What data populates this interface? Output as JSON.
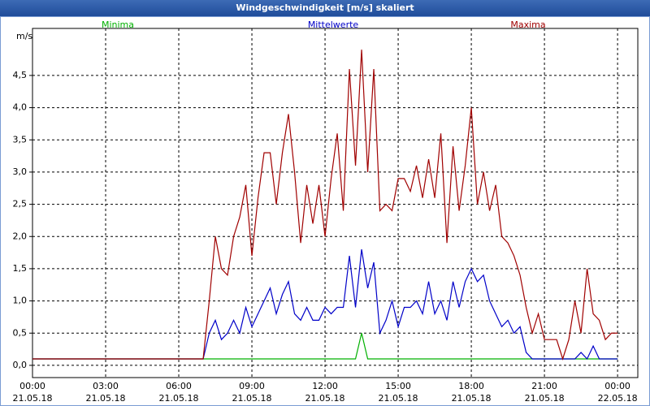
{
  "chart_data": {
    "type": "line",
    "title": "Windgeschwindigkeit [m/s] skaliert",
    "y_label": "m/s",
    "x": [
      0,
      7,
      7.25,
      7.5,
      7.75,
      8,
      8.25,
      8.5,
      8.75,
      9,
      9.25,
      9.5,
      9.75,
      10,
      10.25,
      10.5,
      10.75,
      11,
      11.25,
      11.5,
      11.75,
      12,
      12.25,
      12.5,
      12.75,
      13,
      13.25,
      13.5,
      13.75,
      14,
      14.25,
      14.5,
      14.75,
      15,
      15.25,
      15.5,
      15.75,
      16,
      16.25,
      16.5,
      16.75,
      17,
      17.25,
      17.5,
      17.75,
      18,
      18.25,
      18.5,
      18.75,
      19,
      19.25,
      19.5,
      19.75,
      20,
      20.25,
      20.5,
      20.75,
      21,
      21.25,
      21.5,
      21.75,
      22,
      22.25,
      22.5,
      22.75,
      23,
      23.25,
      23.5,
      23.75,
      24
    ],
    "series": [
      {
        "name": "Minima",
        "color": "#00b000",
        "legend_pos": "left",
        "values": [
          0.1,
          0.1,
          0.1,
          0.1,
          0.1,
          0.1,
          0.1,
          0.1,
          0.1,
          0.1,
          0.1,
          0.1,
          0.1,
          0.1,
          0.1,
          0.1,
          0.1,
          0.1,
          0.1,
          0.1,
          0.1,
          0.1,
          0.1,
          0.1,
          0.1,
          0.1,
          0.1,
          0.5,
          0.1,
          0.1,
          0.1,
          0.1,
          0.1,
          0.1,
          0.1,
          0.1,
          0.1,
          0.1,
          0.1,
          0.1,
          0.1,
          0.1,
          0.1,
          0.1,
          0.1,
          0.1,
          0.1,
          0.1,
          0.1,
          0.1,
          0.1,
          0.1,
          0.1,
          0.1,
          0.1,
          0.1,
          0.1,
          0.1,
          0.1,
          0.1,
          0.1,
          0.1,
          0.1,
          0.1,
          0.1,
          0.1,
          0.1,
          0.1,
          0.1,
          0.1
        ]
      },
      {
        "name": "Mittelwerte",
        "color": "#0000c8",
        "legend_pos": "center",
        "values": [
          0.1,
          0.1,
          0.5,
          0.7,
          0.4,
          0.5,
          0.7,
          0.5,
          0.9,
          0.6,
          0.8,
          1.0,
          1.2,
          0.8,
          1.1,
          1.3,
          0.8,
          0.7,
          0.9,
          0.7,
          0.7,
          0.9,
          0.8,
          0.9,
          0.9,
          1.7,
          0.9,
          1.8,
          1.2,
          1.6,
          0.5,
          0.7,
          1.0,
          0.6,
          0.9,
          0.9,
          1.0,
          0.8,
          1.3,
          0.8,
          1.0,
          0.7,
          1.3,
          0.9,
          1.3,
          1.5,
          1.3,
          1.4,
          1.0,
          0.8,
          0.6,
          0.7,
          0.5,
          0.6,
          0.2,
          0.1,
          0.1,
          0.1,
          0.1,
          0.1,
          0.1,
          0.1,
          0.1,
          0.2,
          0.1,
          0.3,
          0.1,
          0.1,
          0.1,
          0.1
        ]
      },
      {
        "name": "Maxima",
        "color": "#a00000",
        "legend_pos": "right",
        "values": [
          0.1,
          0.1,
          1.0,
          2.0,
          1.5,
          1.4,
          2.0,
          2.3,
          2.8,
          1.7,
          2.6,
          3.3,
          3.3,
          2.5,
          3.3,
          3.9,
          3.0,
          1.9,
          2.8,
          2.2,
          2.8,
          2.0,
          2.9,
          3.6,
          2.4,
          4.6,
          3.1,
          4.9,
          3.0,
          4.6,
          2.4,
          2.5,
          2.4,
          2.9,
          2.9,
          2.7,
          3.1,
          2.6,
          3.2,
          2.6,
          3.6,
          1.9,
          3.4,
          2.4,
          3.1,
          4.0,
          2.5,
          3.0,
          2.4,
          2.8,
          2.0,
          1.9,
          1.7,
          1.4,
          0.9,
          0.5,
          0.8,
          0.4,
          0.4,
          0.4,
          0.1,
          0.4,
          1.0,
          0.5,
          1.5,
          0.8,
          0.7,
          0.4,
          0.5,
          0.5
        ]
      }
    ],
    "xlim": [
      0,
      24.83
    ],
    "ylim": [
      -0.19,
      5.23
    ],
    "xticks": [
      {
        "value": 0,
        "label": "00:00\n21.05.18"
      },
      {
        "value": 3,
        "label": "03:00\n21.05.18"
      },
      {
        "value": 6,
        "label": "06:00\n21.05.18"
      },
      {
        "value": 9,
        "label": "09:00\n21.05.18"
      },
      {
        "value": 12,
        "label": "12:00\n21.05.18"
      },
      {
        "value": 15,
        "label": "15:00\n21.05.18"
      },
      {
        "value": 18,
        "label": "18:00\n21.05.18"
      },
      {
        "value": 21,
        "label": "21:00\n21.05.18"
      },
      {
        "value": 24,
        "label": "00:00\n22.05.18"
      }
    ],
    "yticks": [
      {
        "value": 0,
        "label": "0,0"
      },
      {
        "value": 0.5,
        "label": "0,5"
      },
      {
        "value": 1,
        "label": "1,0"
      },
      {
        "value": 1.5,
        "label": "1,5"
      },
      {
        "value": 2,
        "label": "2,0"
      },
      {
        "value": 2.5,
        "label": "2,5"
      },
      {
        "value": 3,
        "label": "3,0"
      },
      {
        "value": 3.5,
        "label": "3,5"
      },
      {
        "value": 4,
        "label": "4,0"
      },
      {
        "value": 4.5,
        "label": "4,5"
      }
    ],
    "grid": true
  }
}
